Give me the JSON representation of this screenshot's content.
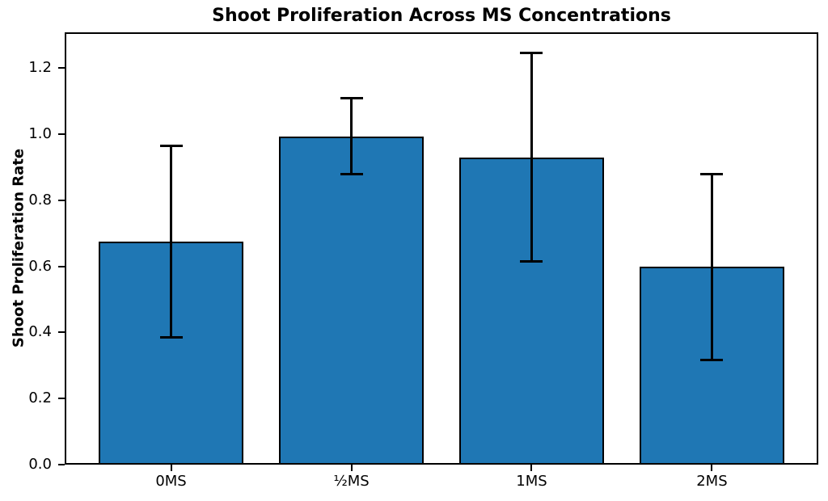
{
  "chart_data": {
    "type": "bar",
    "title": "Shoot Proliferation Across MS Concentrations",
    "xlabel": "",
    "ylabel": "Shoot Proliferation Rate",
    "categories": [
      "0MS",
      "½MS",
      "1MS",
      "2MS"
    ],
    "values": [
      0.675,
      0.993,
      0.93,
      0.598
    ],
    "error_bars": [
      0.29,
      0.115,
      0.315,
      0.282
    ],
    "ytick_labels": [
      "0.0",
      "0.2",
      "0.4",
      "0.6",
      "0.8",
      "1.0",
      "1.2"
    ],
    "ylim": [
      0,
      1.308
    ],
    "bar_color": "#1f77b4",
    "bar_edge_color": "#000000",
    "error_color": "#000000",
    "grid": false,
    "legend_position": "none",
    "background_color": "#ffffff"
  }
}
